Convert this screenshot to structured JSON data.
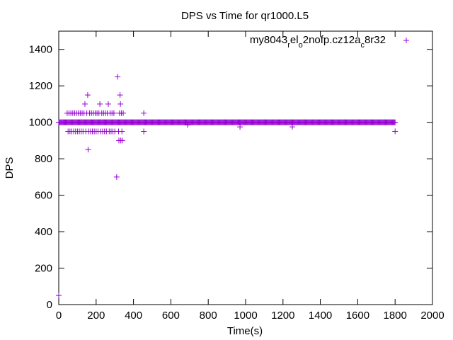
{
  "chart_data": {
    "type": "scatter",
    "title": "DPS vs Time for qr1000.L5",
    "xlabel": "Time(s)",
    "ylabel": "DPS",
    "xlim": [
      0,
      2000
    ],
    "ylim": [
      0,
      1500
    ],
    "xticks": [
      0,
      200,
      400,
      600,
      800,
      1000,
      1200,
      1400,
      1600,
      1800,
      2000
    ],
    "yticks": [
      0,
      200,
      400,
      600,
      800,
      1000,
      1200,
      1400
    ],
    "grid": false,
    "legend_position": "top-right",
    "marker": "plus",
    "color": "#9400d3",
    "legend": {
      "parts": [
        {
          "text": "my8043",
          "shift": "none"
        },
        {
          "text": "r",
          "shift": "sub"
        },
        {
          "text": "el",
          "shift": "none"
        },
        {
          "text": "o",
          "shift": "sub"
        },
        {
          "text": "2nofp.cz12a",
          "shift": "none"
        },
        {
          "text": "c",
          "shift": "sub"
        },
        {
          "text": "8r32",
          "shift": "none"
        }
      ]
    },
    "series": [
      {
        "dense_band": {
          "x_start": 0,
          "x_end": 1800,
          "step": 4,
          "y": 1000
        },
        "points": [
          [
            0,
            50
          ],
          [
            45,
            1050
          ],
          [
            50,
            950
          ],
          [
            55,
            1050
          ],
          [
            60,
            950
          ],
          [
            65,
            1050
          ],
          [
            70,
            950
          ],
          [
            75,
            1050
          ],
          [
            80,
            950
          ],
          [
            85,
            1050
          ],
          [
            90,
            950
          ],
          [
            95,
            1050
          ],
          [
            100,
            950
          ],
          [
            105,
            1050
          ],
          [
            110,
            950
          ],
          [
            115,
            1050
          ],
          [
            120,
            950
          ],
          [
            125,
            1050
          ],
          [
            130,
            950
          ],
          [
            135,
            1050
          ],
          [
            140,
            1100
          ],
          [
            145,
            950
          ],
          [
            150,
            1050
          ],
          [
            155,
            1150
          ],
          [
            157,
            850
          ],
          [
            160,
            950
          ],
          [
            165,
            1050
          ],
          [
            170,
            950
          ],
          [
            175,
            1050
          ],
          [
            180,
            950
          ],
          [
            185,
            1050
          ],
          [
            190,
            950
          ],
          [
            195,
            1050
          ],
          [
            200,
            950
          ],
          [
            205,
            1050
          ],
          [
            210,
            950
          ],
          [
            215,
            1050
          ],
          [
            220,
            1100
          ],
          [
            225,
            950
          ],
          [
            230,
            1050
          ],
          [
            235,
            950
          ],
          [
            240,
            1050
          ],
          [
            245,
            950
          ],
          [
            250,
            1050
          ],
          [
            255,
            950
          ],
          [
            260,
            1050
          ],
          [
            265,
            1100
          ],
          [
            270,
            950
          ],
          [
            275,
            1050
          ],
          [
            280,
            950
          ],
          [
            285,
            1050
          ],
          [
            290,
            950
          ],
          [
            295,
            1050
          ],
          [
            300,
            950
          ],
          [
            310,
            700
          ],
          [
            315,
            1250
          ],
          [
            320,
            950
          ],
          [
            322,
            900
          ],
          [
            325,
            1050
          ],
          [
            328,
            1150
          ],
          [
            330,
            1100
          ],
          [
            332,
            900
          ],
          [
            335,
            1050
          ],
          [
            338,
            950
          ],
          [
            340,
            900
          ],
          [
            345,
            1050
          ],
          [
            455,
            1050
          ],
          [
            455,
            950
          ],
          [
            690,
            985
          ],
          [
            970,
            975
          ],
          [
            1250,
            975
          ],
          [
            1800,
            950
          ]
        ]
      }
    ]
  }
}
